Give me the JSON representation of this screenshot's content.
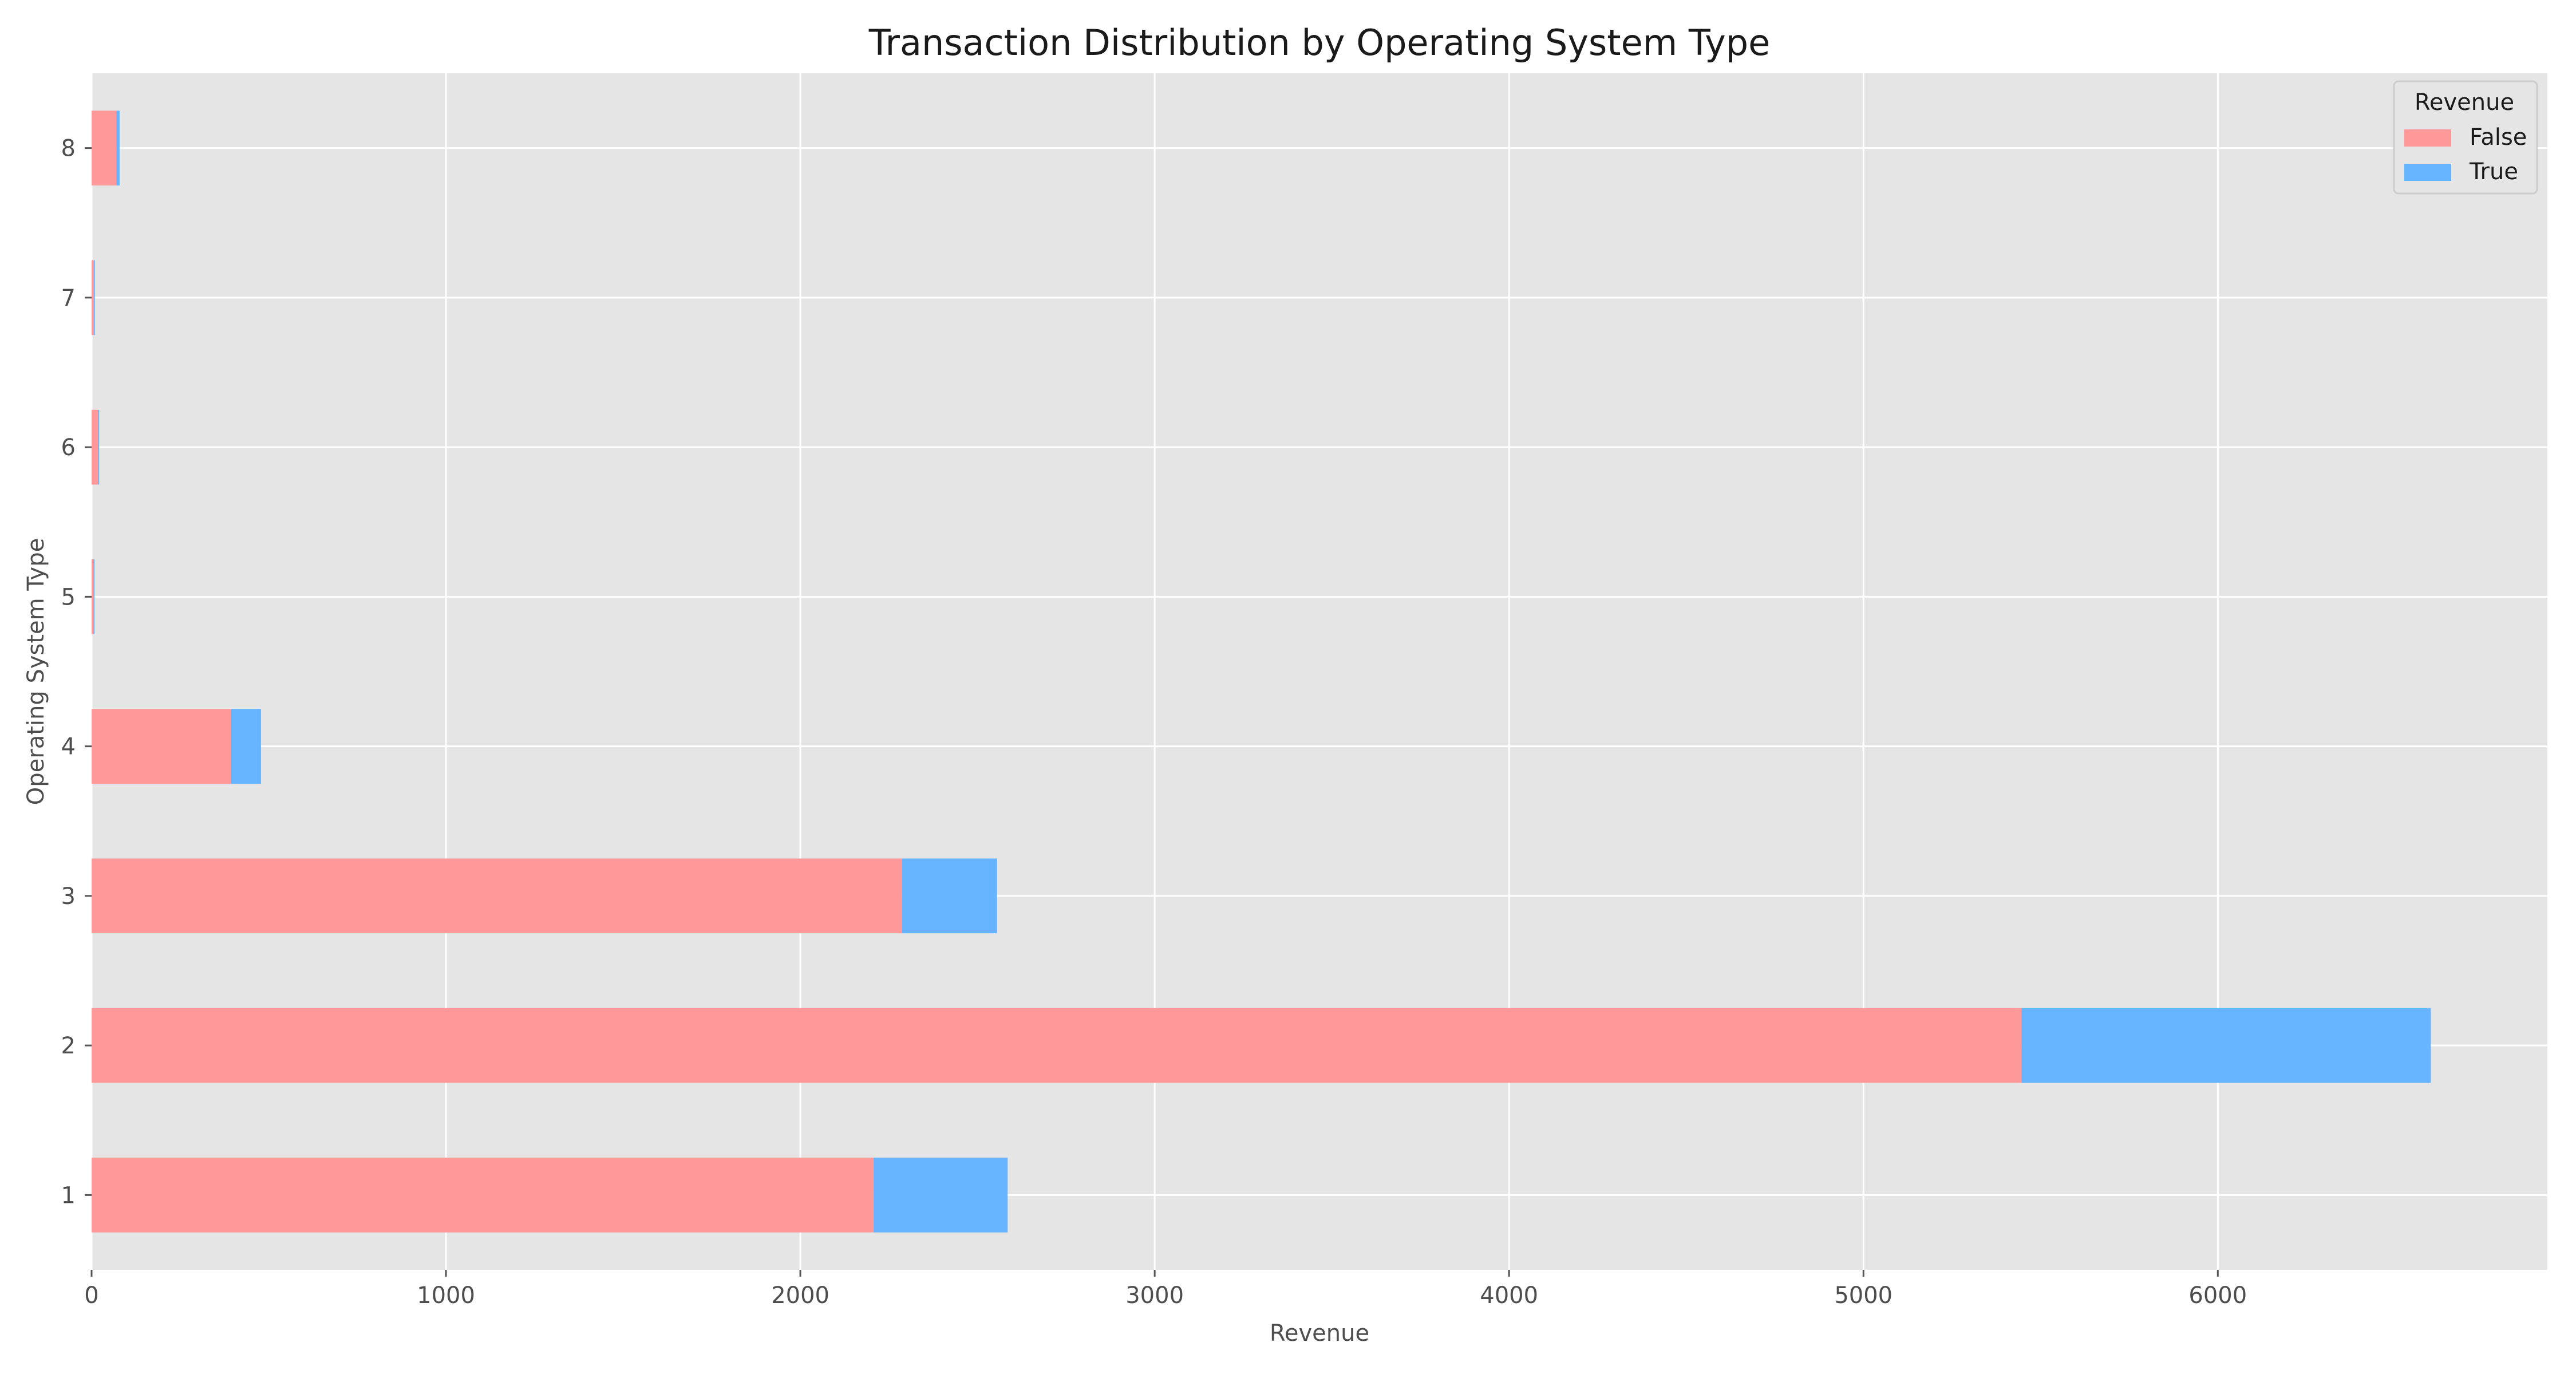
{
  "chart_data": {
    "type": "bar",
    "orientation": "horizontal",
    "stacked": true,
    "title": "Transaction Distribution by Operating System Type",
    "xlabel": "Revenue",
    "ylabel": "Operating System Type",
    "categories": [
      "1",
      "2",
      "3",
      "4",
      "5",
      "6",
      "7",
      "8"
    ],
    "series": [
      {
        "name": "False",
        "color": "#ff9999",
        "values": [
          2207,
          5446,
          2287,
          394,
          5,
          18,
          6,
          70
        ]
      },
      {
        "name": "True",
        "color": "#66b3ff",
        "values": [
          378,
          1155,
          268,
          84,
          1,
          1,
          1,
          9
        ]
      }
    ],
    "xlim": [
      0,
      6930
    ],
    "xticks": [
      0,
      1000,
      2000,
      3000,
      4000,
      5000,
      6000
    ],
    "legend": {
      "title": "Revenue",
      "position": "top-right"
    },
    "grid": true,
    "background": "#e5e5e5"
  }
}
